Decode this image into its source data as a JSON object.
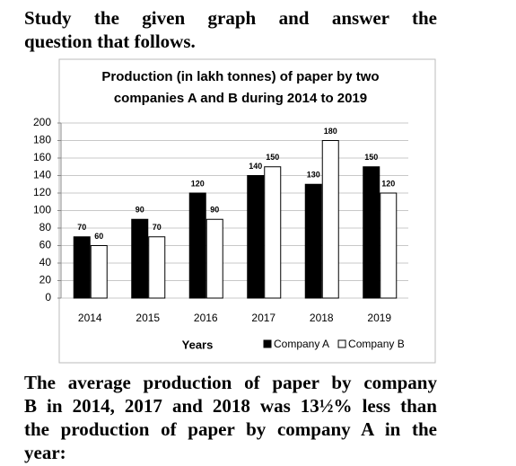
{
  "header": {
    "lines": [
      "Study the given graph and answer the",
      "question that follows."
    ]
  },
  "chart_data": {
    "type": "bar",
    "title": [
      "Production (in lakh tonnes) of paper by two",
      "companies A and B during 2014 to 2019"
    ],
    "x_label": "Years",
    "categories": [
      "2014",
      "2015",
      "2016",
      "2017",
      "2018",
      "2019"
    ],
    "series": [
      {
        "name": "Company A",
        "color": "#000000",
        "values": [
          70,
          90,
          120,
          140,
          130,
          150
        ]
      },
      {
        "name": "Company B",
        "color": "#ffffff",
        "values": [
          60,
          70,
          90,
          150,
          180,
          120
        ]
      }
    ],
    "ylim": [
      0,
      200
    ],
    "yticks": [
      0,
      20,
      40,
      60,
      80,
      100,
      120,
      140,
      160,
      180,
      200
    ],
    "grid": true,
    "legend": "bottom-right"
  },
  "question": {
    "lines": [
      "The average production of paper by company",
      "B in 2014, 2017 and 2018 was 13½% less than",
      "the production of paper by company A in the",
      "year:"
    ]
  }
}
